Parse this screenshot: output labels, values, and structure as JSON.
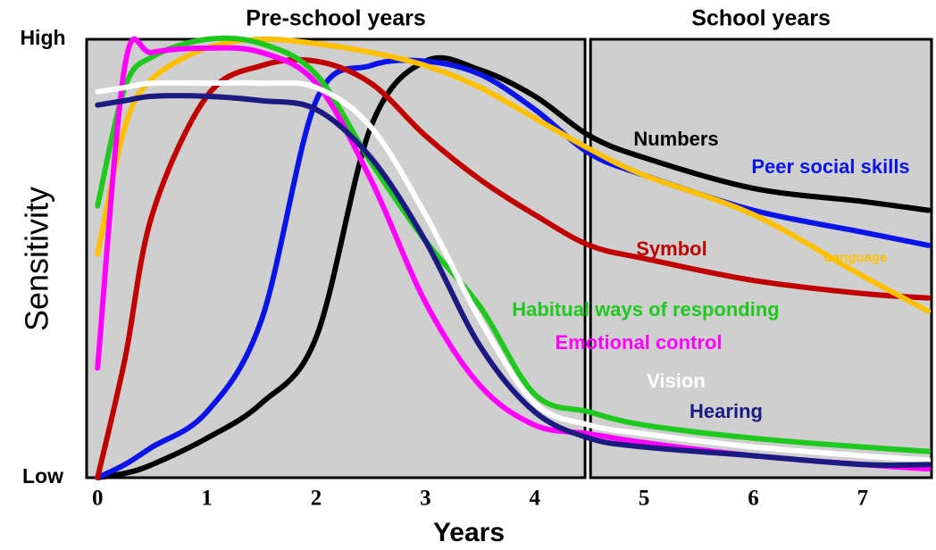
{
  "chart_data": {
    "type": "line",
    "x_label": "Years",
    "y_label": "Sensitivity",
    "regions": [
      {
        "label": "Pre-school years",
        "xlim": [
          -0.1,
          4.46
        ]
      },
      {
        "label": "School years",
        "xlim": [
          4.51,
          7.63
        ]
      }
    ],
    "x": [
      0,
      0.25,
      0.5,
      1,
      1.5,
      2,
      2.5,
      3,
      3.5,
      4,
      4.5,
      5,
      6,
      7,
      7.6
    ],
    "series": [
      {
        "name": "Numbers",
        "color": "#000000",
        "values": [
          0,
          1,
          3,
          9,
          17,
          32,
          80,
          95,
          93,
          87,
          78,
          73,
          66,
          63,
          61
        ]
      },
      {
        "name": "Peer social skills",
        "color": "#0a14e6",
        "values": [
          0,
          3,
          7,
          15,
          36,
          86,
          94,
          95,
          92,
          84,
          74,
          69,
          61,
          56,
          53
        ]
      },
      {
        "name": "Symbol",
        "color": "#c00000",
        "values": [
          0,
          27,
          60,
          87,
          94,
          95,
          90,
          78,
          68,
          60,
          53,
          50,
          45,
          42,
          41
        ]
      },
      {
        "name": "Language",
        "color": "#ffc000",
        "values": [
          51,
          80,
          91,
          98,
          100,
          99,
          97,
          94,
          89,
          82,
          75,
          69,
          60,
          46,
          38
        ]
      },
      {
        "name": "Habitual ways of responding",
        "color": "#1ec81e",
        "values": [
          62,
          89,
          96,
          100,
          99,
          92,
          72,
          54,
          39,
          19,
          15,
          12,
          9,
          7,
          6
        ]
      },
      {
        "name": "Emotional control",
        "color": "#ff00ff",
        "values": [
          25,
          94,
          97,
          98,
          97,
          90,
          68,
          40,
          21,
          12,
          10,
          8,
          5,
          3,
          2
        ]
      },
      {
        "name": "Vision",
        "color": "#ffffff",
        "values": [
          88,
          89,
          90,
          90,
          90,
          89,
          80,
          60,
          36,
          17,
          12,
          10,
          7,
          5,
          4
        ]
      },
      {
        "name": "Hearing",
        "color": "#1a1a80",
        "values": [
          85,
          86,
          87,
          87,
          86,
          84,
          73,
          54,
          30,
          15,
          9,
          7,
          5,
          3,
          3
        ]
      }
    ],
    "xlim": [
      -0.1,
      7.63
    ],
    "ylim": [
      0,
      100
    ],
    "xticks": [
      0,
      1,
      2,
      3,
      4,
      5,
      6,
      7
    ],
    "yticks": [
      {
        "value": 0,
        "label": "Low"
      },
      {
        "value": 100,
        "label": "High"
      }
    ]
  }
}
